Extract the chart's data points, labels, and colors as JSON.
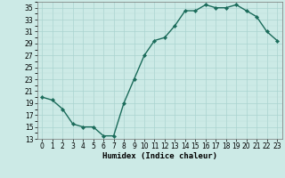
{
  "x": [
    0,
    1,
    2,
    3,
    4,
    5,
    6,
    7,
    8,
    9,
    10,
    11,
    12,
    13,
    14,
    15,
    16,
    17,
    18,
    19,
    20,
    21,
    22,
    23
  ],
  "y": [
    20,
    19.5,
    18,
    15.5,
    15,
    15,
    13.5,
    13.5,
    19,
    23,
    27,
    29.5,
    30,
    32,
    34.5,
    34.5,
    35.5,
    35,
    35,
    35.5,
    34.5,
    33.5,
    31,
    29.5
  ],
  "line_color": "#1a6b5a",
  "marker_color": "#1a6b5a",
  "bg_color": "#cceae6",
  "grid_color_major": "#aad4d0",
  "grid_color_minor": "#bbddd9",
  "xlabel": "Humidex (Indice chaleur)",
  "xlim": [
    -0.5,
    23.5
  ],
  "ylim": [
    13,
    36
  ],
  "yticks": [
    13,
    15,
    17,
    19,
    21,
    23,
    25,
    27,
    29,
    31,
    33,
    35
  ],
  "xticks": [
    0,
    1,
    2,
    3,
    4,
    5,
    6,
    7,
    8,
    9,
    10,
    11,
    12,
    13,
    14,
    15,
    16,
    17,
    18,
    19,
    20,
    21,
    22,
    23
  ],
  "tick_fontsize": 5.5,
  "xlabel_fontsize": 6.5,
  "marker_size": 2.2,
  "line_width": 1.0
}
